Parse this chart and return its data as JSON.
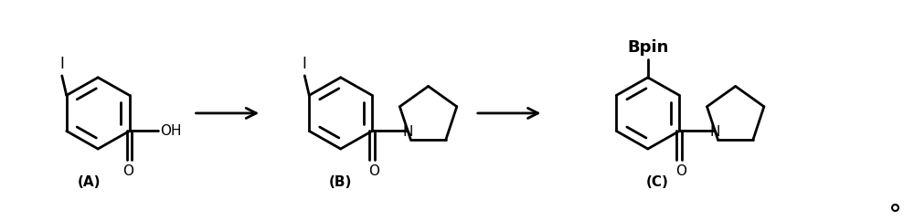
{
  "background_color": "#ffffff",
  "figsize": [
    10.0,
    2.42
  ],
  "dpi": 100,
  "label_A": "(A)",
  "label_B": "(B)",
  "label_C": "(C)",
  "label_Bpin": "Bpin",
  "label_OH": "OH",
  "label_N": "N",
  "label_O": "O",
  "label_I": "I",
  "line_color": "#000000",
  "text_color": "#000000",
  "line_width": 2.0,
  "font_size_label": 11,
  "font_size_atom": 11,
  "font_size_bpin": 13
}
